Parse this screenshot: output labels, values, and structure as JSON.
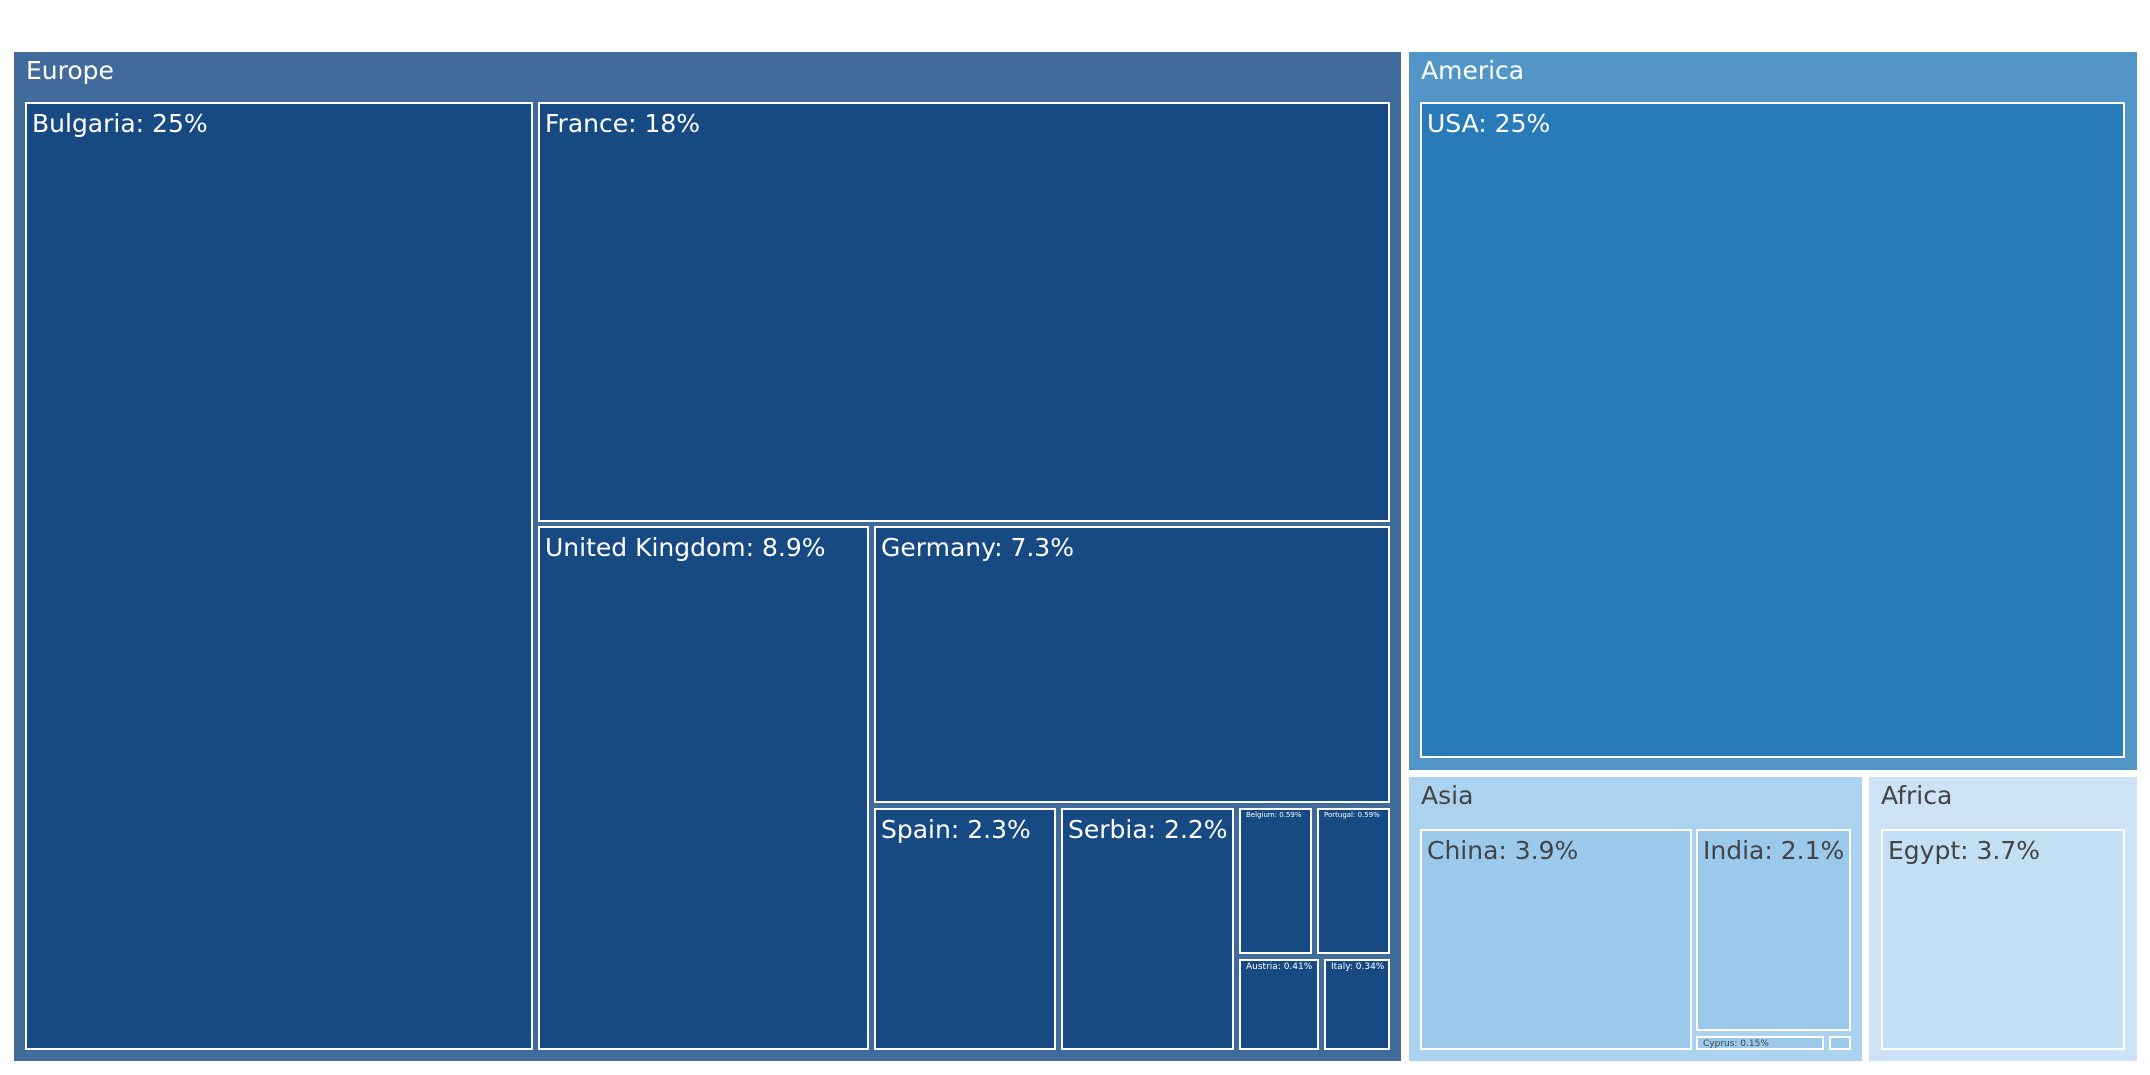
{
  "chart_data": {
    "type": "treemap",
    "unit": "%",
    "groups": [
      {
        "name": "Europe",
        "color": "#416b9b",
        "cell_color": "#174a83",
        "text_color": "#ffffff",
        "children": [
          {
            "name": "Bulgaria",
            "value": 25,
            "label": "Bulgaria: 25%"
          },
          {
            "name": "France",
            "value": 18,
            "label": "France: 18%"
          },
          {
            "name": "United Kingdom",
            "value": 8.9,
            "label": "United Kingdom: 8.9%"
          },
          {
            "name": "Germany",
            "value": 7.3,
            "label": "Germany: 7.3%"
          },
          {
            "name": "Spain",
            "value": 2.3,
            "label": "Spain: 2.3%"
          },
          {
            "name": "Serbia",
            "value": 2.2,
            "label": "Serbia: 2.2%"
          },
          {
            "name": "Belgium",
            "value": 0.59,
            "label": "Belgium: 0.59%"
          },
          {
            "name": "Portugal",
            "value": 0.59,
            "label": "Portugal: 0.59%"
          },
          {
            "name": "Austria",
            "value": 0.41,
            "label": "Austria: 0.41%"
          },
          {
            "name": "Italy",
            "value": 0.34,
            "label": "Italy: 0.34%"
          }
        ]
      },
      {
        "name": "America",
        "color": "#5196c6",
        "cell_color": "#287bb8",
        "text_color": "#ffffff",
        "children": [
          {
            "name": "USA",
            "value": 25,
            "label": "USA: 25%"
          }
        ]
      },
      {
        "name": "Asia",
        "color": "#abd3f0",
        "cell_color": "#9ac9ec",
        "text_color": "#444444",
        "children": [
          {
            "name": "China",
            "value": 3.9,
            "label": "China: 3.9%"
          },
          {
            "name": "India",
            "value": 2.1,
            "label": "India: 2.1%"
          },
          {
            "name": "Cyprus",
            "value": 0.15,
            "label": "Cyprus: 0.15%"
          },
          {
            "name": "",
            "value": 0.03,
            "label": ""
          }
        ]
      },
      {
        "name": "Africa",
        "color": "#cde3f5",
        "cell_color": "#c3dff4",
        "text_color": "#444444",
        "children": [
          {
            "name": "Egypt",
            "value": 3.7,
            "label": "Egypt: 3.7%"
          }
        ]
      }
    ]
  }
}
